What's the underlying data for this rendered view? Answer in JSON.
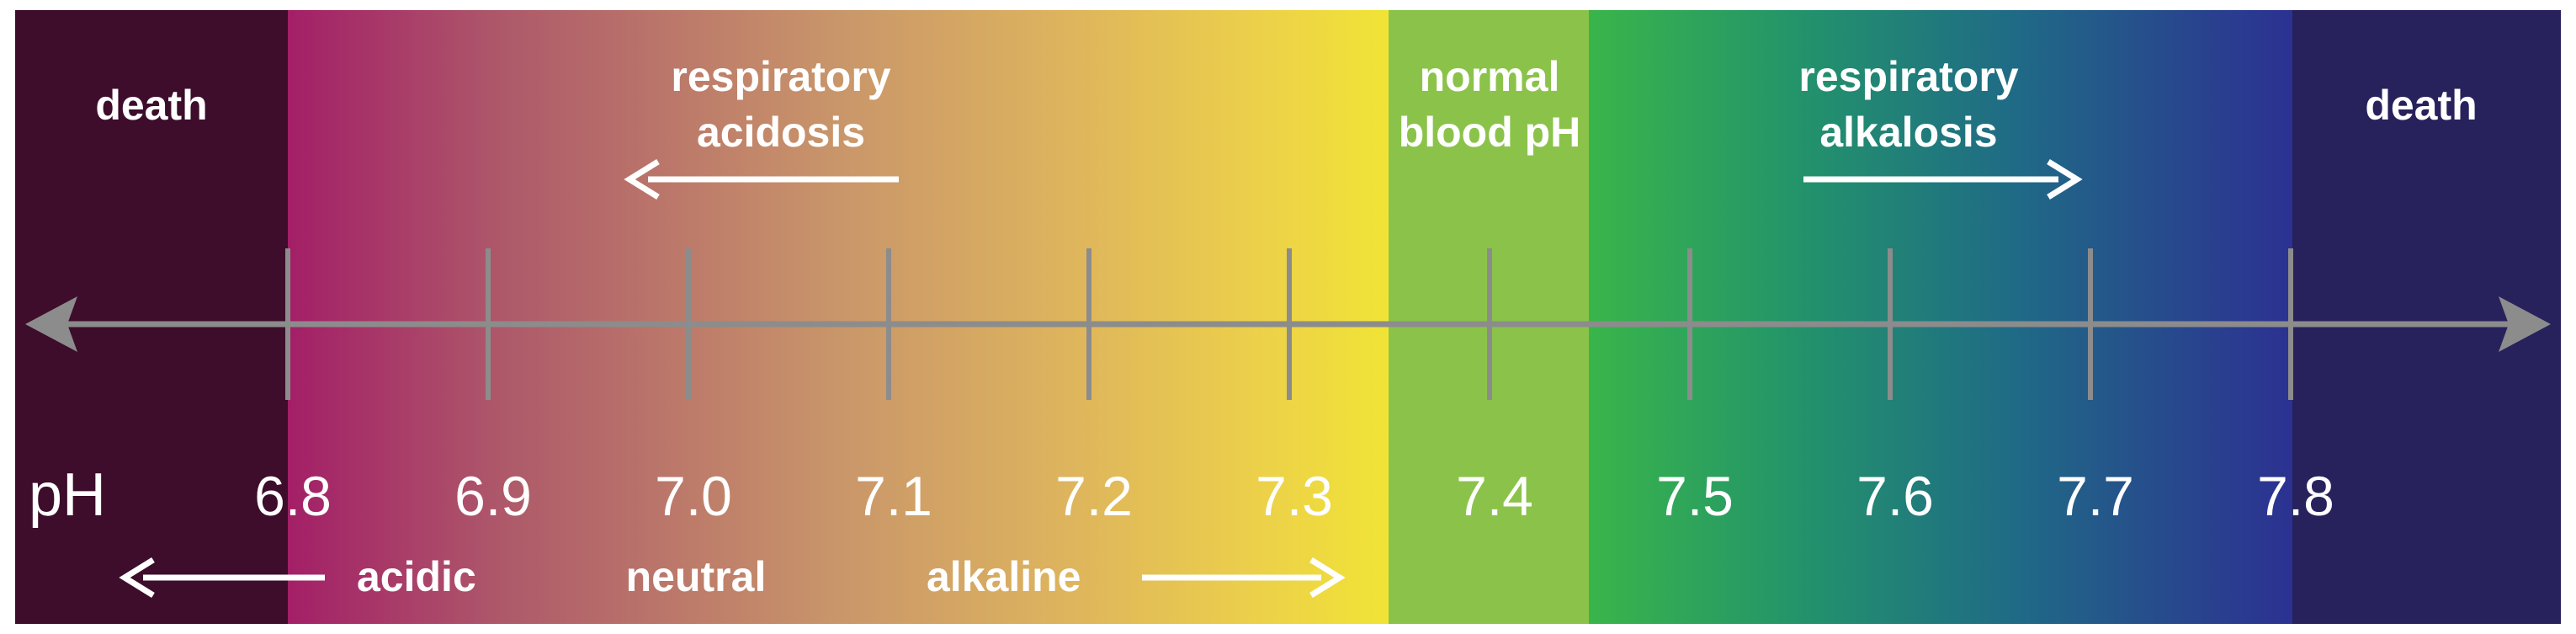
{
  "colors": {
    "death_left": "#3d0d2b",
    "death_right": "#27215c",
    "gradient": [
      "#a31f67",
      "#ae5a6a",
      "#c9966a",
      "#ddb35e",
      "#ecd04a",
      "#f1e435"
    ],
    "normal_band": "#8bc34a",
    "alkalosis_gradient": [
      "#39b54a",
      "#23936b",
      "#1f6b86",
      "#2a3e8f",
      "#2b3191"
    ],
    "axis": "#8c8c8c",
    "text": "#ffffff"
  },
  "axis": {
    "unit_label": "pH",
    "ticks": [
      "6.8",
      "6.9",
      "7.0",
      "7.1",
      "7.2",
      "7.3",
      "7.4",
      "7.5",
      "7.6",
      "7.7",
      "7.8"
    ]
  },
  "zones": {
    "death_left": "death",
    "respiratory_acidosis": [
      "respiratory",
      "acidosis"
    ],
    "normal": [
      "normal",
      "blood pH"
    ],
    "respiratory_alkalosis": [
      "respiratory",
      "alkalosis"
    ],
    "death_right": "death"
  },
  "bottom_labels": {
    "acidic": "acidic",
    "neutral": "neutral",
    "alkaline": "alkaline"
  }
}
